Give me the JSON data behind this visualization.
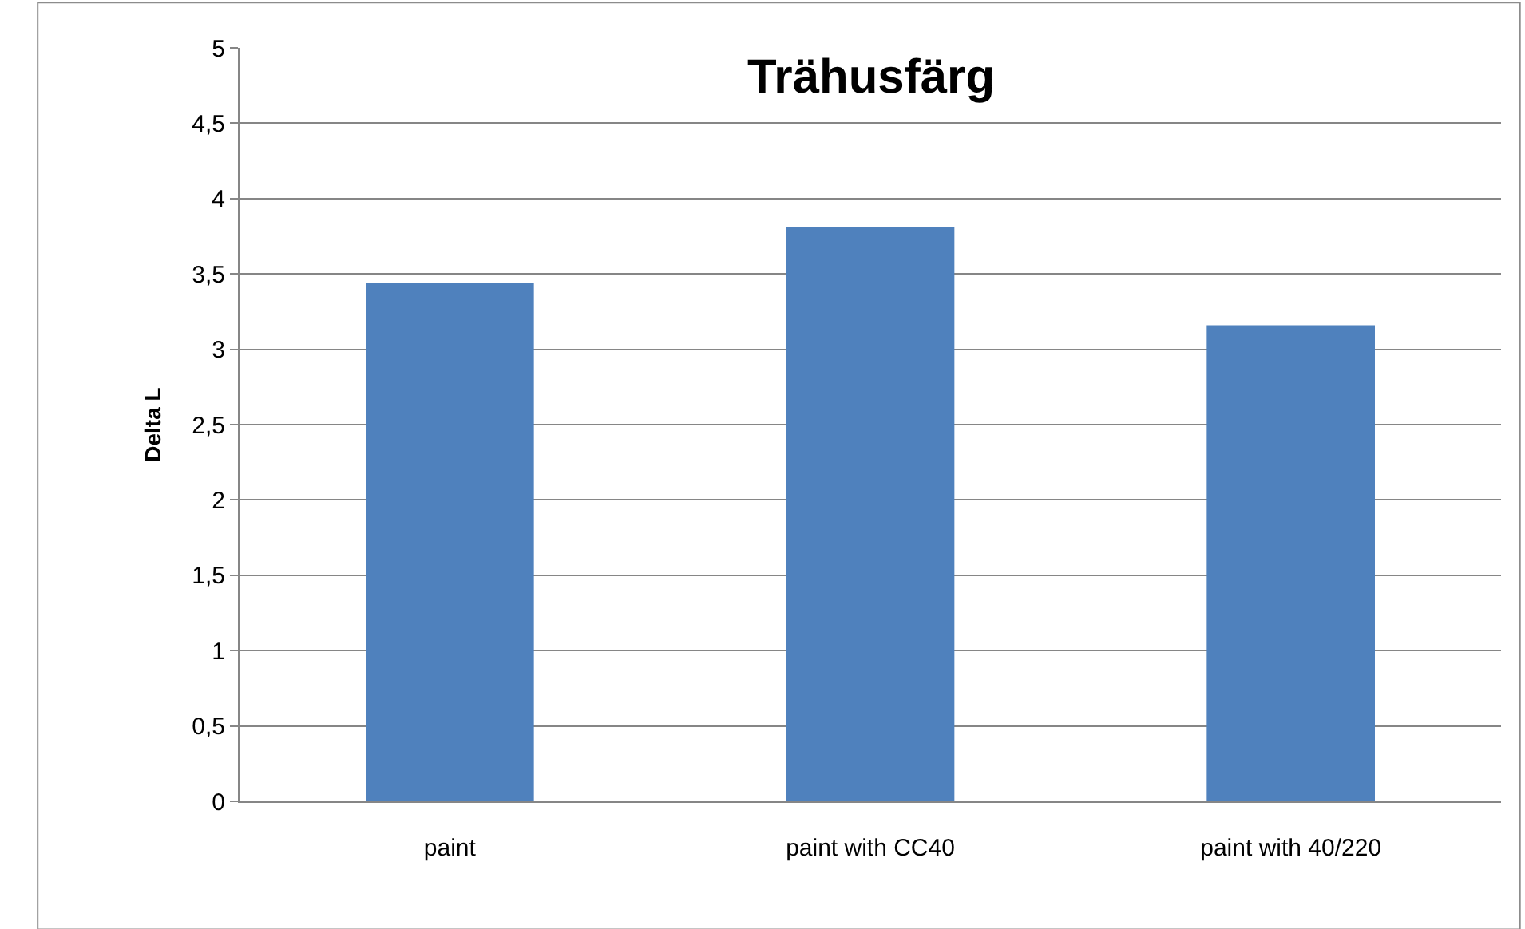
{
  "chart_data": {
    "type": "bar",
    "title": "Trähusfärg",
    "ylabel": "Delta L",
    "categories": [
      "paint",
      "paint with CC40",
      "paint with 40/220"
    ],
    "values": [
      3.44,
      3.81,
      3.16
    ],
    "color": "#4f81bd",
    "ylim": [
      0,
      5
    ],
    "yticks": [
      0,
      {
        "value": 0.5,
        "label": "0,5"
      },
      1,
      {
        "value": 1.5,
        "label": "1,5"
      },
      2,
      {
        "value": 2.5,
        "label": "2,5"
      },
      3,
      {
        "value": 3.5,
        "label": "3,5"
      },
      4,
      {
        "value": 4.5,
        "label": "4,5"
      },
      5
    ],
    "grid": "y",
    "legend": false
  }
}
